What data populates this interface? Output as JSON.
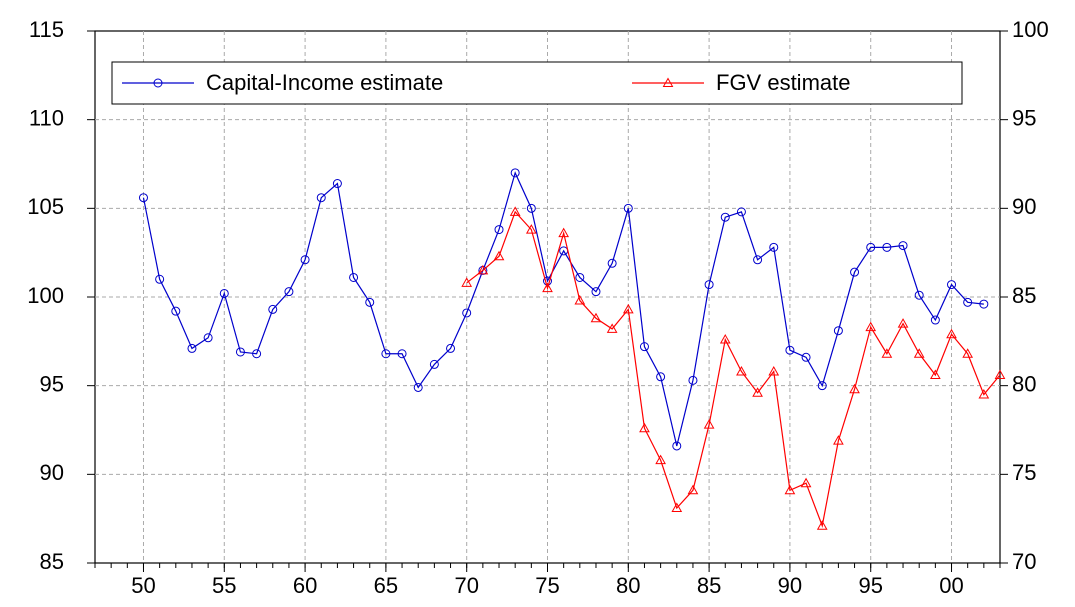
{
  "chart_data": {
    "type": "line",
    "x": [
      1950,
      1951,
      1952,
      1953,
      1954,
      1955,
      1956,
      1957,
      1958,
      1959,
      1960,
      1961,
      1962,
      1963,
      1964,
      1965,
      1966,
      1967,
      1968,
      1969,
      1970,
      1971,
      1972,
      1973,
      1974,
      1975,
      1976,
      1977,
      1978,
      1979,
      1980,
      1981,
      1982,
      1983,
      1984,
      1985,
      1986,
      1987,
      1988,
      1989,
      1990,
      1991,
      1992,
      1993,
      1994,
      1995,
      1996,
      1997,
      1998,
      1999,
      2000,
      2001,
      2002,
      2003
    ],
    "series": [
      {
        "name": "Capital-Income estimate",
        "color": "#0000cc",
        "marker": "circle",
        "values": [
          105.6,
          101.0,
          99.2,
          97.1,
          97.7,
          100.2,
          96.9,
          96.8,
          99.3,
          100.3,
          102.1,
          105.6,
          106.4,
          101.1,
          99.7,
          96.8,
          96.8,
          94.9,
          96.2,
          97.1,
          99.1,
          101.5,
          103.8,
          107.0,
          105.0,
          100.9,
          102.6,
          101.1,
          100.3,
          101.9,
          105.0,
          97.2,
          95.5,
          91.6,
          95.3,
          100.7,
          104.5,
          104.8,
          102.1,
          102.8,
          97.0,
          96.6,
          95.0,
          98.1,
          101.4,
          102.8,
          102.8,
          102.9,
          100.1,
          98.7,
          100.7,
          99.7,
          99.6,
          null
        ]
      },
      {
        "name": "FGV estimate",
        "color": "#ff0000",
        "marker": "triangle",
        "axis": "y2",
        "values": [
          null,
          null,
          null,
          null,
          null,
          null,
          null,
          null,
          null,
          null,
          null,
          null,
          null,
          null,
          null,
          null,
          null,
          null,
          null,
          null,
          85.8,
          86.5,
          87.3,
          89.8,
          88.8,
          85.5,
          88.6,
          84.8,
          83.8,
          83.2,
          84.3,
          77.6,
          75.8,
          73.1,
          74.1,
          77.8,
          82.6,
          80.8,
          79.6,
          80.8,
          74.1,
          74.5,
          72.1,
          76.9,
          79.8,
          83.3,
          81.8,
          83.5,
          81.8,
          80.6,
          82.9,
          81.8,
          79.5,
          80.6
        ]
      }
    ],
    "xlim": [
      1947,
      2003
    ],
    "xticks": [
      {
        "value": 1950,
        "label": "50"
      },
      {
        "value": 1955,
        "label": "55"
      },
      {
        "value": 1960,
        "label": "60"
      },
      {
        "value": 1965,
        "label": "65"
      },
      {
        "value": 1970,
        "label": "70"
      },
      {
        "value": 1975,
        "label": "75"
      },
      {
        "value": 1980,
        "label": "80"
      },
      {
        "value": 1985,
        "label": "85"
      },
      {
        "value": 1990,
        "label": "90"
      },
      {
        "value": 1995,
        "label": "95"
      },
      {
        "value": 2000,
        "label": "00"
      }
    ],
    "ylim": [
      85,
      115
    ],
    "yticks": [
      85,
      90,
      95,
      100,
      105,
      110,
      115
    ],
    "y2lim": [
      70,
      100
    ],
    "y2ticks": [
      70,
      75,
      80,
      85,
      90,
      95,
      100
    ],
    "grid": true,
    "legend": "top"
  }
}
